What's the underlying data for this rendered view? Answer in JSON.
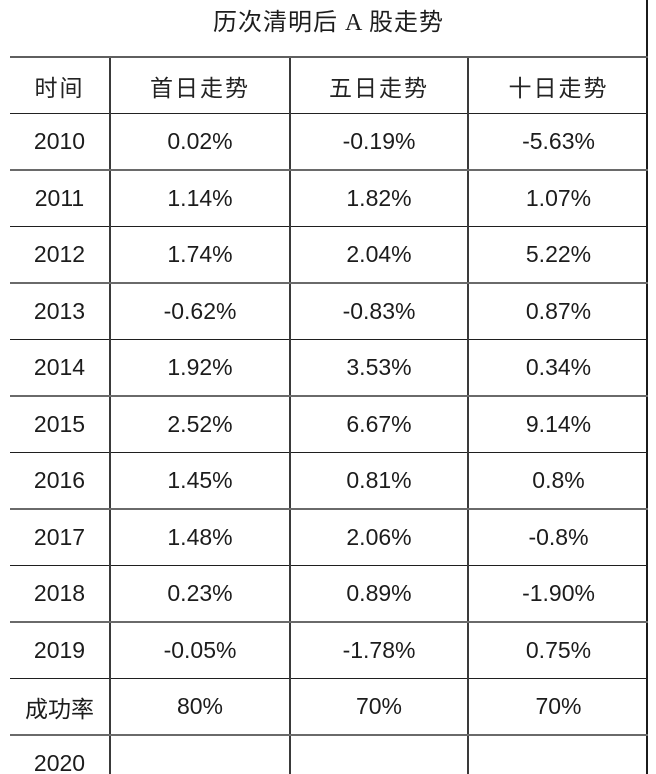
{
  "page": {
    "title": "历次清明后 A 股走势"
  },
  "chart_data": {
    "type": "table",
    "title": "历次清明后 A 股走势",
    "columns": [
      "时间",
      "首日走势",
      "五日走势",
      "十日走势"
    ],
    "rows": [
      [
        "2010",
        "0.02%",
        "-0.19%",
        "-5.63%"
      ],
      [
        "2011",
        "1.14%",
        "1.82%",
        "1.07%"
      ],
      [
        "2012",
        "1.74%",
        "2.04%",
        "5.22%"
      ],
      [
        "2013",
        "-0.62%",
        "-0.83%",
        "0.87%"
      ],
      [
        "2014",
        "1.92%",
        "3.53%",
        "0.34%"
      ],
      [
        "2015",
        "2.52%",
        "6.67%",
        "9.14%"
      ],
      [
        "2016",
        "1.45%",
        "0.81%",
        "0.8%"
      ],
      [
        "2017",
        "1.48%",
        "2.06%",
        "-0.8%"
      ],
      [
        "2018",
        "0.23%",
        "0.89%",
        "-1.90%"
      ],
      [
        "2019",
        "-0.05%",
        "-1.78%",
        "0.75%"
      ],
      [
        "成功率",
        "80%",
        "70%",
        "70%"
      ],
      [
        "2020",
        "",
        "",
        ""
      ]
    ]
  },
  "colors": {
    "background": "#ffffff",
    "text": "#1f1f1f",
    "grid_light": "#6a6a6a",
    "grid_dark": "#1c1c1c"
  }
}
